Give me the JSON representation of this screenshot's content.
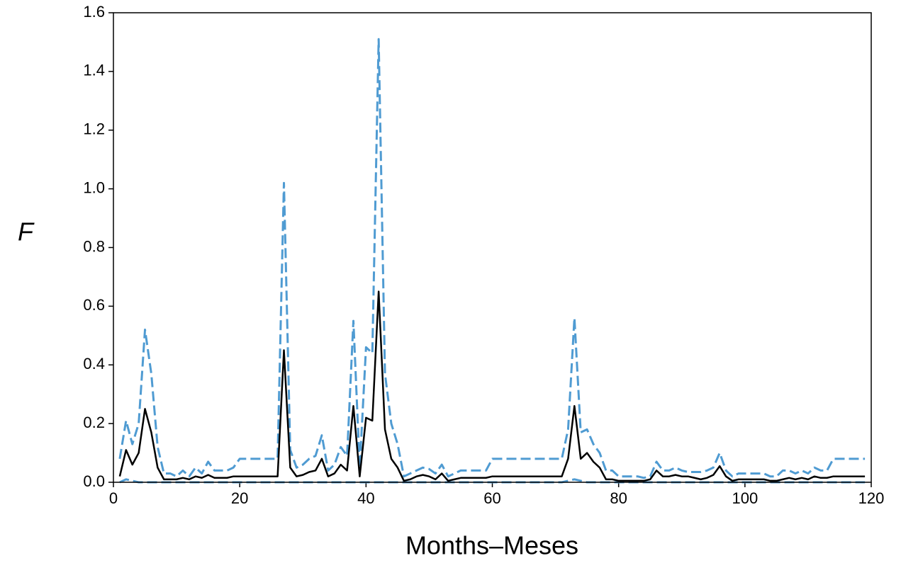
{
  "chart_data": {
    "type": "line",
    "xlabel": "Months–Meses",
    "ylabel": "F",
    "x": [
      1,
      2,
      3,
      4,
      5,
      6,
      7,
      8,
      9,
      10,
      11,
      12,
      13,
      14,
      15,
      16,
      17,
      18,
      19,
      20,
      21,
      22,
      23,
      24,
      25,
      26,
      27,
      28,
      29,
      30,
      31,
      32,
      33,
      34,
      35,
      36,
      37,
      38,
      39,
      40,
      41,
      42,
      43,
      44,
      45,
      46,
      47,
      48,
      49,
      50,
      51,
      52,
      53,
      54,
      55,
      56,
      57,
      58,
      59,
      60,
      61,
      62,
      63,
      64,
      65,
      66,
      67,
      68,
      69,
      70,
      71,
      72,
      73,
      74,
      75,
      76,
      77,
      78,
      79,
      80,
      81,
      82,
      83,
      84,
      85,
      86,
      87,
      88,
      89,
      90,
      91,
      92,
      93,
      94,
      95,
      96,
      97,
      98,
      99,
      100,
      101,
      102,
      103,
      104,
      105,
      106,
      107,
      108,
      109,
      110,
      111,
      112,
      113,
      114,
      115,
      116,
      117,
      118,
      119
    ],
    "series": [
      {
        "color": "#4f9bd2",
        "dash": true,
        "values": [
          0.08,
          0.21,
          0.13,
          0.2,
          0.52,
          0.37,
          0.12,
          0.03,
          0.03,
          0.02,
          0.04,
          0.02,
          0.05,
          0.03,
          0.07,
          0.04,
          0.04,
          0.04,
          0.05,
          0.08,
          0.08,
          0.08,
          0.08,
          0.08,
          0.08,
          0.08,
          1.02,
          0.11,
          0.05,
          0.06,
          0.08,
          0.09,
          0.16,
          0.04,
          0.06,
          0.12,
          0.09,
          0.55,
          0.05,
          0.46,
          0.44,
          1.51,
          0.37,
          0.2,
          0.13,
          0.02,
          0.03,
          0.04,
          0.05,
          0.045,
          0.03,
          0.06,
          0.02,
          0.03,
          0.04,
          0.04,
          0.04,
          0.04,
          0.04,
          0.08,
          0.08,
          0.08,
          0.08,
          0.08,
          0.08,
          0.08,
          0.08,
          0.08,
          0.08,
          0.08,
          0.08,
          0.18,
          0.56,
          0.17,
          0.18,
          0.13,
          0.1,
          0.04,
          0.04,
          0.02,
          0.02,
          0.02,
          0.02,
          0.015,
          0.02,
          0.07,
          0.04,
          0.04,
          0.05,
          0.04,
          0.035,
          0.035,
          0.035,
          0.04,
          0.05,
          0.1,
          0.04,
          0.02,
          0.03,
          0.03,
          0.03,
          0.03,
          0.03,
          0.02,
          0.02,
          0.04,
          0.04,
          0.03,
          0.04,
          0.03,
          0.05,
          0.04,
          0.04,
          0.08,
          0.08,
          0.08,
          0.08,
          0.08,
          0.08
        ]
      },
      {
        "color": "#4f9bd2",
        "dash": true,
        "values": [
          0,
          0.01,
          0.005,
          0,
          0,
          0,
          0,
          0,
          0,
          0,
          0,
          0,
          0,
          0,
          0,
          0,
          0,
          0,
          0,
          0,
          0,
          0,
          0,
          0,
          0,
          0,
          0,
          0,
          0,
          0,
          0,
          0,
          0,
          0,
          0,
          0,
          0,
          0,
          0,
          0,
          0,
          0,
          0,
          0,
          0,
          0,
          0,
          0,
          0,
          0,
          0,
          0,
          0,
          0,
          0,
          0,
          0,
          0,
          0,
          0,
          0,
          0,
          0,
          0,
          0,
          0,
          0,
          0,
          0,
          0,
          0,
          0.005,
          0.01,
          0.005,
          0,
          0,
          0,
          0,
          0,
          0,
          0,
          0,
          0,
          0,
          0,
          0,
          0,
          0,
          0,
          0,
          0,
          0,
          0,
          0,
          0,
          0,
          0,
          0,
          0,
          0,
          0,
          0,
          0,
          0,
          0,
          0,
          0,
          0,
          0,
          0,
          0,
          0,
          0,
          0,
          0,
          0,
          0,
          0,
          0
        ]
      },
      {
        "color": "#000000",
        "dash": false,
        "values": [
          0.02,
          0.11,
          0.06,
          0.1,
          0.25,
          0.17,
          0.05,
          0.01,
          0.01,
          0.01,
          0.015,
          0.01,
          0.02,
          0.015,
          0.025,
          0.015,
          0.015,
          0.015,
          0.02,
          0.02,
          0.02,
          0.02,
          0.02,
          0.02,
          0.02,
          0.02,
          0.45,
          0.05,
          0.02,
          0.025,
          0.035,
          0.04,
          0.08,
          0.02,
          0.03,
          0.06,
          0.04,
          0.26,
          0.02,
          0.22,
          0.21,
          0.65,
          0.18,
          0.08,
          0.05,
          0.005,
          0.01,
          0.02,
          0.025,
          0.02,
          0.01,
          0.03,
          0.005,
          0.01,
          0.015,
          0.015,
          0.015,
          0.015,
          0.015,
          0.02,
          0.02,
          0.02,
          0.02,
          0.02,
          0.02,
          0.02,
          0.02,
          0.02,
          0.02,
          0.02,
          0.02,
          0.08,
          0.26,
          0.08,
          0.1,
          0.07,
          0.05,
          0.01,
          0.01,
          0.005,
          0.005,
          0.005,
          0.005,
          0.005,
          0.01,
          0.04,
          0.02,
          0.02,
          0.025,
          0.02,
          0.02,
          0.015,
          0.01,
          0.015,
          0.025,
          0.055,
          0.02,
          0.005,
          0.01,
          0.01,
          0.01,
          0.01,
          0.01,
          0.005,
          0.005,
          0.01,
          0.015,
          0.01,
          0.015,
          0.01,
          0.02,
          0.015,
          0.015,
          0.02,
          0.02,
          0.02,
          0.02,
          0.02,
          0.02
        ]
      }
    ],
    "xlim": [
      0,
      120
    ],
    "xticks": [
      0,
      20,
      40,
      60,
      80,
      100,
      120
    ],
    "ylim": [
      0,
      1.6
    ],
    "yticks": [
      {
        "value": 0,
        "label": "0.0"
      },
      0.2,
      0.4,
      0.6,
      0.8,
      {
        "value": 1,
        "label": "1.0"
      },
      1.2,
      1.4,
      1.6
    ]
  }
}
